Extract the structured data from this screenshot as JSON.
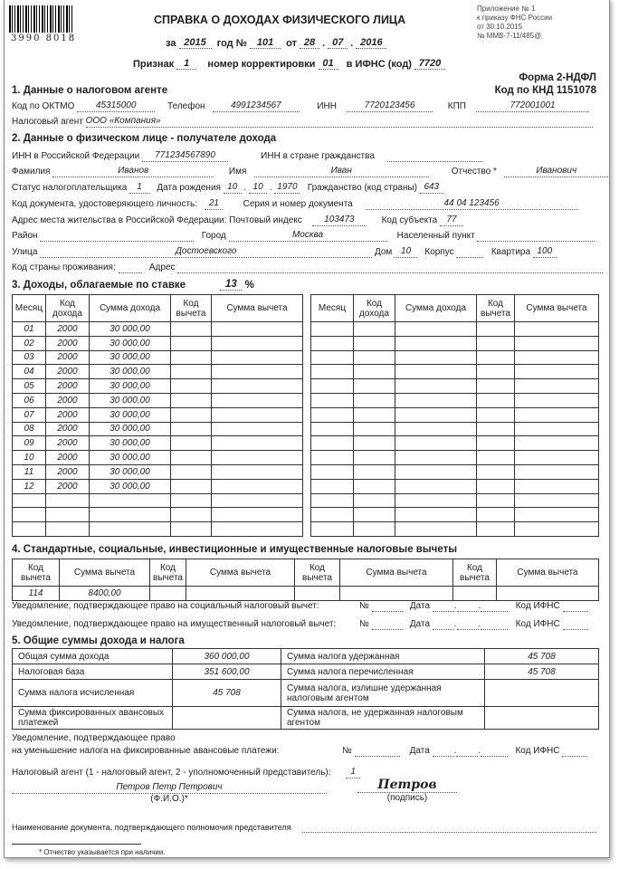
{
  "header": {
    "barcode": "3990 8018",
    "appendix": [
      "Приложение № 1",
      "к приказу ФНС России",
      "от 30.10.2015",
      "№ ММВ-7-11/485@"
    ],
    "title": "СПРАВКА О ДОХОДАХ ФИЗИЧЕСКОГО ЛИЦА",
    "za": "за",
    "year": "2015",
    "god": "год №",
    "number": "101",
    "ot": "от",
    "day": "28",
    "month": "07",
    "year2": "2016",
    "priznak_label": "Признак",
    "priznak": "1",
    "korr_label": "номер корректировки",
    "korr": "01",
    "ifns_label": "в ИФНС (код)",
    "ifns": "7720",
    "form": "Форма 2-НДФЛ",
    "knd": "Код по КНД 1151078"
  },
  "s1": {
    "title": "1. Данные о налоговом агенте",
    "oktmo_label": "Код по ОКТМО",
    "oktmo": "45315000",
    "phone_label": "Телефон",
    "phone": "4991234567",
    "inn_label": "ИНН",
    "inn": "7720123456",
    "kpp_label": "КПП",
    "kpp": "772001001",
    "agent_label": "Налоговый агент",
    "agent": "ООО «Компания»"
  },
  "s2": {
    "title": "2. Данные о физическом лице - получателе дохода",
    "inn_rf_label": "ИНН в Российской Федерации",
    "inn_rf": "771234567890",
    "inn_foreign_label": "ИНН в стране гражданства",
    "surname_label": "Фамилия",
    "surname": "Иванов",
    "name_label": "Имя",
    "name": "Иван",
    "patronymic_label": "Отчество *",
    "patronymic": "Иванович",
    "status_label": "Статус налогоплательщика",
    "status": "1",
    "dob_label": "Дата рождения",
    "dob_d": "10",
    "dob_m": "10",
    "dob_y": "1970",
    "citizenship_label": "Гражданство (код страны)",
    "citizenship": "643",
    "doc_code_label": "Код документа, удостоверяющего личность:",
    "doc_code": "21",
    "doc_num_label": "Серия и номер документа",
    "doc_num": "44 04 123456",
    "address_label": "Адрес места жительства в Российской Федерации: Почтовый индекс",
    "zip": "103473",
    "region_label": "Код субъекта",
    "region": "77",
    "district_label": "Район",
    "city_label": "Город",
    "city": "Москва",
    "locality_label": "Населенный пункт",
    "street_label": "Улица",
    "street": "Достоевского",
    "house_label": "Дом",
    "house": "10",
    "korpus_label": "Корпус",
    "flat_label": "Квартира",
    "flat": "100",
    "country_label": "Код страны проживания:",
    "addr_label": "Адрес"
  },
  "s3": {
    "title": "3. Доходы, облагаемые по ставке",
    "rate": "13",
    "pct": "%",
    "headers": [
      "Месяц",
      "Код дохода",
      "Сумма дохода",
      "Код вычета",
      "Сумма вычета"
    ],
    "rows": [
      [
        "01",
        "2000",
        "30 000,00"
      ],
      [
        "02",
        "2000",
        "30 000,00"
      ],
      [
        "03",
        "2000",
        "30 000,00"
      ],
      [
        "04",
        "2000",
        "30 000,00"
      ],
      [
        "05",
        "2000",
        "30 000,00"
      ],
      [
        "06",
        "2000",
        "30 000,00"
      ],
      [
        "07",
        "2000",
        "30 000,00"
      ],
      [
        "08",
        "2000",
        "30 000,00"
      ],
      [
        "09",
        "2000",
        "30 000,00"
      ],
      [
        "10",
        "2000",
        "30 000,00"
      ],
      [
        "11",
        "2000",
        "30 000,00"
      ],
      [
        "12",
        "2000",
        "30 000,00"
      ]
    ]
  },
  "s4": {
    "title": "4. Стандартные, социальные, инвестиционные и имущественные налоговые вычеты",
    "code_header": "Код вычета",
    "sum_header": "Сумма вычета",
    "code": "114",
    "sum": "8400,00",
    "notice_social": "Уведомление, подтверждающее право на социальный налоговый вычет:",
    "notice_property": "Уведомление, подтверждающее право на имущественный налоговый вычет:",
    "no": "№",
    "date": "Дата",
    "ifns": "Код ИФНС"
  },
  "s5": {
    "title": "5. Общие суммы дохода и налога",
    "rows": [
      [
        "Общая сумма дохода",
        "360 000,00",
        "Сумма налога удержанная",
        "45 708"
      ],
      [
        "Налоговая база",
        "351 600,00",
        "Сумма налога перечисленная",
        "45 708"
      ],
      [
        "Сумма налога исчисленная",
        "45 708",
        "Сумма налога, излишне удержанная налоговым агентом",
        ""
      ],
      [
        "Сумма фиксированных авансовых платежей",
        "",
        "Сумма налога, не удержанная налоговым агентом",
        ""
      ]
    ]
  },
  "footer": {
    "notice1": "Уведомление, подтверждающее право",
    "notice2": "на уменьшение налога на фиксированные авансовые платежи:",
    "agent_label": "Налоговый агент (1 - налоговый агент, 2 - уполномоченный представитель):",
    "agent_type": "1",
    "fio": "Петров Петр Петрович",
    "fio_label": "(Ф.И.О.)*",
    "signature": "Петров",
    "signature_label": "(подпись)",
    "doc_label": "Наименование документа, подтверждающего полномочия представителя",
    "footnote": "* Отчество указывается при наличии."
  }
}
